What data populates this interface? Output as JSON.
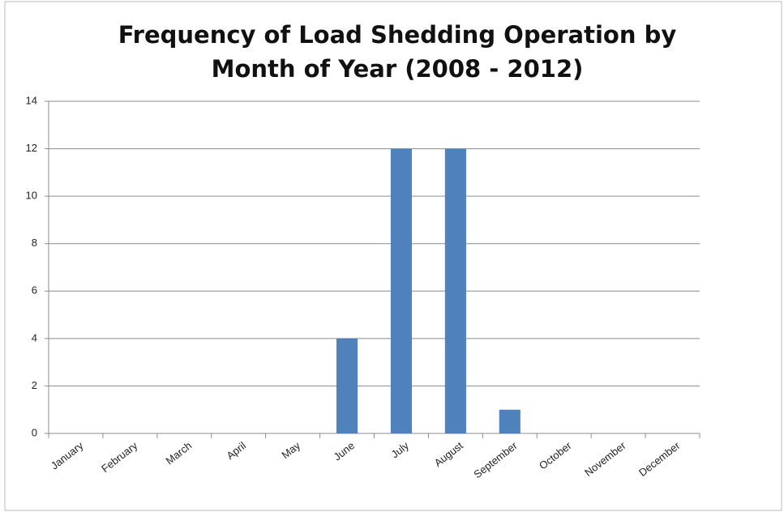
{
  "chart_data": {
    "type": "bar",
    "title": "Frequency of Load Shedding Operation by Month of Year (2008 - 2012)",
    "categories": [
      "January",
      "February",
      "March",
      "April",
      "May",
      "June",
      "July",
      "August",
      "September",
      "October",
      "November",
      "December"
    ],
    "values": [
      0,
      0,
      0,
      0,
      0,
      4,
      12,
      12,
      1,
      0,
      0,
      0
    ],
    "color": "#4f81bd",
    "ylim": [
      0,
      14
    ],
    "yticks": [
      0,
      2,
      4,
      6,
      8,
      10,
      12,
      14
    ],
    "grid": true
  }
}
